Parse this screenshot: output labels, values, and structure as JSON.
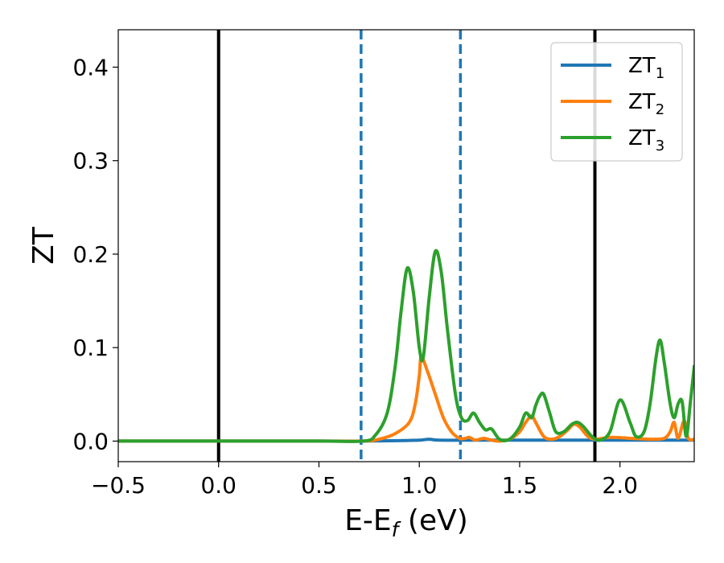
{
  "chart_data": {
    "type": "line",
    "xlabel": "E-E_f (eV)",
    "xlabel_parts": {
      "main": "E-E",
      "subscript": "f",
      "unit": " (eV)"
    },
    "ylabel": "ZT",
    "xlim": [
      -0.5,
      2.37
    ],
    "ylim": [
      -0.022,
      0.44
    ],
    "xticks": [
      -0.5,
      0.0,
      0.5,
      1.0,
      1.5,
      2.0
    ],
    "xtick_labels": [
      "−0.5",
      "0.0",
      "0.5",
      "1.0",
      "1.5",
      "2.0"
    ],
    "yticks": [
      0.0,
      0.1,
      0.2,
      0.3,
      0.4
    ],
    "ytick_labels": [
      "0.0",
      "0.1",
      "0.2",
      "0.3",
      "0.4"
    ],
    "grid": false,
    "legend_position": "top-right",
    "vertical_lines": [
      {
        "x": 0.0,
        "style": "solid",
        "color": "#000000"
      },
      {
        "x": 1.875,
        "style": "solid",
        "color": "#000000"
      },
      {
        "x": 0.71,
        "style": "dashed",
        "color": "#1f77b4"
      },
      {
        "x": 1.205,
        "style": "dashed",
        "color": "#1f77b4"
      }
    ],
    "series": [
      {
        "name": "ZT1",
        "label_main": "ZT",
        "label_sub": "1",
        "color": "#1f77b4",
        "x": [
          -0.5,
          0.0,
          0.5,
          0.72,
          0.9,
          1.0,
          1.05,
          1.1,
          1.3,
          1.5,
          1.7,
          1.9,
          2.1,
          2.37
        ],
        "y": [
          0,
          0,
          0,
          0,
          0.0005,
          0.001,
          0.002,
          0.001,
          0.001,
          0.001,
          0.001,
          0.001,
          0.001,
          0.001
        ]
      },
      {
        "name": "ZT2",
        "label_main": "ZT",
        "label_sub": "2",
        "color": "#ff7f0e",
        "x": [
          -0.5,
          0.0,
          0.5,
          0.72,
          0.8,
          0.88,
          0.95,
          0.98,
          1.0,
          1.01,
          1.04,
          1.08,
          1.12,
          1.16,
          1.2,
          1.23,
          1.25,
          1.28,
          1.32,
          1.36,
          1.4,
          1.45,
          1.5,
          1.53,
          1.56,
          1.58,
          1.62,
          1.66,
          1.7,
          1.74,
          1.77,
          1.8,
          1.84,
          1.88,
          1.95,
          2.05,
          2.15,
          2.22,
          2.25,
          2.27,
          2.29,
          2.32,
          2.34,
          2.37
        ],
        "y": [
          0,
          0,
          0,
          0.0,
          0.002,
          0.008,
          0.02,
          0.04,
          0.07,
          0.09,
          0.075,
          0.05,
          0.025,
          0.01,
          0.003,
          0.003,
          0.004,
          0.001,
          0.003,
          0.001,
          0.0,
          0.002,
          0.01,
          0.02,
          0.027,
          0.02,
          0.005,
          0.002,
          0.005,
          0.012,
          0.018,
          0.015,
          0.005,
          0.002,
          0.004,
          0.003,
          0.002,
          0.003,
          0.01,
          0.02,
          0.003,
          0.022,
          0.003,
          0.002
        ]
      },
      {
        "name": "ZT3",
        "label_main": "ZT",
        "label_sub": "3",
        "color": "#2ca02c",
        "x": [
          -0.5,
          0.0,
          0.5,
          0.72,
          0.78,
          0.84,
          0.88,
          0.91,
          0.94,
          0.97,
          1.0,
          1.02,
          1.05,
          1.08,
          1.11,
          1.14,
          1.18,
          1.21,
          1.24,
          1.27,
          1.3,
          1.33,
          1.36,
          1.4,
          1.45,
          1.5,
          1.53,
          1.56,
          1.58,
          1.6,
          1.62,
          1.65,
          1.68,
          1.72,
          1.76,
          1.79,
          1.82,
          1.86,
          1.9,
          1.95,
          2.0,
          2.05,
          2.08,
          2.12,
          2.15,
          2.18,
          2.2,
          2.22,
          2.25,
          2.27,
          2.29,
          2.31,
          2.33,
          2.35,
          2.37
        ],
        "y": [
          0,
          0,
          0,
          0.0,
          0.006,
          0.03,
          0.08,
          0.14,
          0.185,
          0.16,
          0.1,
          0.09,
          0.155,
          0.203,
          0.18,
          0.12,
          0.05,
          0.025,
          0.022,
          0.03,
          0.02,
          0.012,
          0.013,
          0.002,
          0.002,
          0.015,
          0.03,
          0.025,
          0.038,
          0.048,
          0.05,
          0.03,
          0.01,
          0.01,
          0.018,
          0.02,
          0.015,
          0.005,
          0.001,
          0.01,
          0.044,
          0.02,
          0.005,
          0.01,
          0.04,
          0.09,
          0.108,
          0.085,
          0.04,
          0.025,
          0.04,
          0.042,
          0.005,
          0.04,
          0.08
        ]
      }
    ]
  }
}
